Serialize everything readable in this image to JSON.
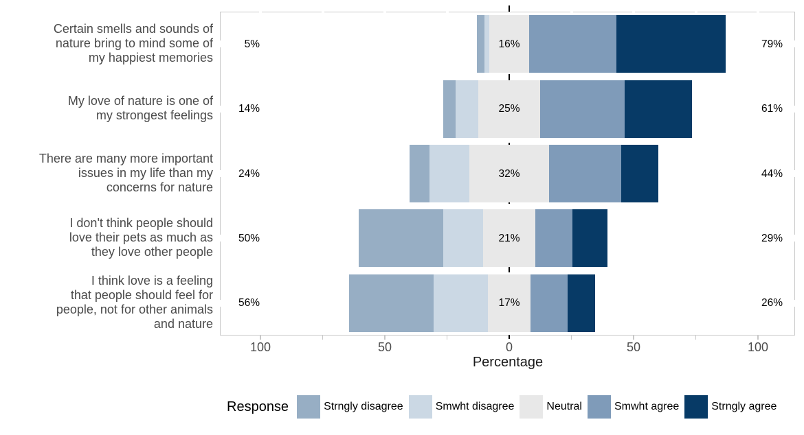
{
  "chart_data": {
    "type": "bar",
    "variant": "diverging-stacked-likert",
    "xlabel": "Percentage",
    "axis": {
      "major_ticks": [
        {
          "value": -100,
          "label": "100"
        },
        {
          "value": -50,
          "label": "50"
        },
        {
          "value": 0,
          "label": "0"
        },
        {
          "value": 50,
          "label": "50"
        },
        {
          "value": 100,
          "label": "100"
        }
      ],
      "minor_tick_values": [
        -100,
        -75,
        -50,
        -25,
        25,
        50,
        75,
        100
      ],
      "range": [
        -116,
        115
      ],
      "grid": "off",
      "zero_line": {
        "style": "dashed",
        "color": "#000000"
      }
    },
    "legend": {
      "position": "bottom",
      "title": "Response",
      "entries": [
        {
          "label": "Strngly disagree",
          "color": "#97AEC4"
        },
        {
          "label": "Smwht disagree",
          "color": "#CBD8E4"
        },
        {
          "label": "Neutral",
          "color": "#E8E8E8"
        },
        {
          "label": "Smwht agree",
          "color": "#7F9BB9"
        },
        {
          "label": "Strngly agree",
          "color": "#073A66"
        }
      ]
    },
    "series_order": [
      "strongly_disagree",
      "somewhat_disagree",
      "neutral",
      "somewhat_agree",
      "strongly_agree"
    ],
    "rows": [
      {
        "category": "Certain smells and sounds of nature bring to mind some of my happiest memories",
        "category_lines": [
          "Certain smells and sounds of",
          "nature bring to mind some of",
          "my happiest memories"
        ],
        "values": {
          "strongly_disagree": 3,
          "somewhat_disagree": 2,
          "neutral": 16,
          "somewhat_agree": 35,
          "strongly_agree": 44
        },
        "labels": {
          "left": "5%",
          "center": "16%",
          "right": "79%"
        }
      },
      {
        "category": "My love of nature is one of my strongest feelings",
        "category_lines": [
          "My love of nature is one of",
          "my strongest feelings"
        ],
        "values": {
          "strongly_disagree": 5,
          "somewhat_disagree": 9,
          "neutral": 25,
          "somewhat_agree": 34,
          "strongly_agree": 27
        },
        "labels": {
          "left": "14%",
          "center": "25%",
          "right": "61%"
        }
      },
      {
        "category": "There are many more important issues in my life than my concerns for nature",
        "category_lines": [
          "There are many more important",
          "issues in my life than my",
          "concerns for nature"
        ],
        "values": {
          "strongly_disagree": 8,
          "somewhat_disagree": 16,
          "neutral": 32,
          "somewhat_agree": 29,
          "strongly_agree": 15
        },
        "labels": {
          "left": "24%",
          "center": "32%",
          "right": "44%"
        }
      },
      {
        "category": "I don't think people should love their pets as much as they love other people",
        "category_lines": [
          "I don't think people should",
          "love their pets as much as",
          "they love other people"
        ],
        "values": {
          "strongly_disagree": 34,
          "somewhat_disagree": 16,
          "neutral": 21,
          "somewhat_agree": 15,
          "strongly_agree": 14
        },
        "labels": {
          "left": "50%",
          "center": "21%",
          "right": "29%"
        }
      },
      {
        "category": "I think love is a feeling that people should feel for people, not for other animals and nature",
        "category_lines": [
          "I think love is a feeling",
          "that people should feel for",
          "people, not for other animals",
          "and nature"
        ],
        "values": {
          "strongly_disagree": 34,
          "somewhat_disagree": 22,
          "neutral": 17,
          "somewhat_agree": 15,
          "strongly_agree": 11
        },
        "labels": {
          "left": "56%",
          "center": "17%",
          "right": "26%"
        }
      }
    ],
    "colors": {
      "panel_border": "#C8C8C8",
      "axis_text": "#4D4D4D",
      "category_text": "#4A4A4A",
      "annotation_text": "#000000",
      "background": "#FFFFFF"
    }
  }
}
